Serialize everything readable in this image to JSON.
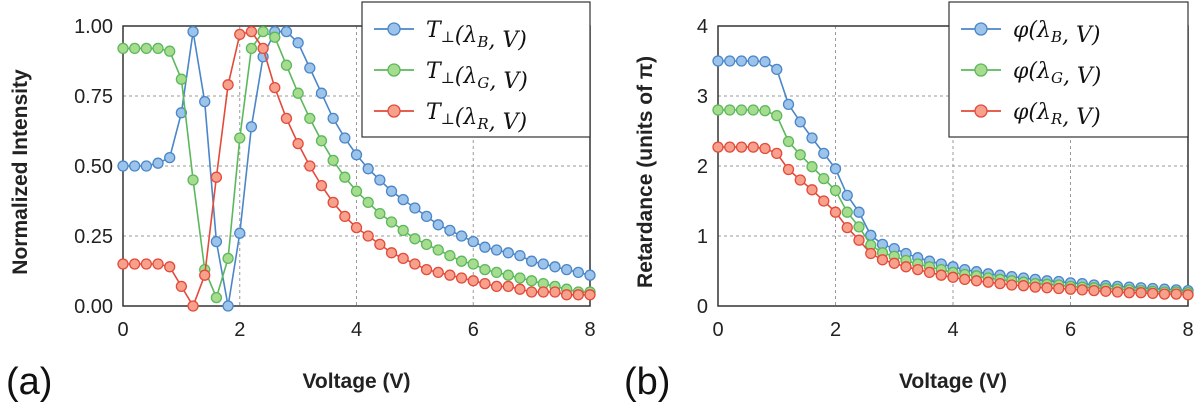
{
  "colors": {
    "blue": "#4a86c8",
    "green": "#5cb85c",
    "red": "#e34a3a",
    "blue_fill": "#9cc3ea",
    "green_fill": "#a6dc8e",
    "red_fill": "#f7a08c"
  },
  "chart_data": [
    {
      "type": "line",
      "panel_label": "(a)",
      "xlabel": "Voltage (V)",
      "ylabel": "Normalized Intensity",
      "xlim": [
        0,
        8
      ],
      "ylim": [
        0,
        1
      ],
      "xticks": [
        "0",
        "2",
        "4",
        "6",
        "8"
      ],
      "yticks": [
        "0.00",
        "0.25",
        "0.50",
        "0.75",
        "1.00"
      ],
      "grid": true,
      "legend_position": "top-right",
      "x": [
        0,
        0.2,
        0.4,
        0.6,
        0.8,
        1.0,
        1.2,
        1.4,
        1.6,
        1.8,
        2.0,
        2.2,
        2.4,
        2.6,
        2.8,
        3.0,
        3.2,
        3.4,
        3.6,
        3.8,
        4.0,
        4.2,
        4.4,
        4.6,
        4.8,
        5.0,
        5.2,
        5.4,
        5.6,
        5.8,
        6.0,
        6.2,
        6.4,
        6.6,
        6.8,
        7.0,
        7.2,
        7.4,
        7.6,
        7.8,
        8.0
      ],
      "series": [
        {
          "name": "T⊥(λB,V)",
          "legend_base": "T",
          "legend_sub": "⊥",
          "legend_lam": "λ",
          "legend_lam_sub": "B",
          "legend_suffix": ", V)",
          "color_key": "blue",
          "values": [
            0.5,
            0.5,
            0.5,
            0.51,
            0.53,
            0.69,
            0.98,
            0.73,
            0.23,
            0.0,
            0.26,
            0.64,
            0.89,
            0.98,
            0.98,
            0.94,
            0.85,
            0.76,
            0.67,
            0.6,
            0.54,
            0.49,
            0.45,
            0.41,
            0.38,
            0.35,
            0.32,
            0.29,
            0.27,
            0.25,
            0.23,
            0.21,
            0.2,
            0.19,
            0.18,
            0.16,
            0.15,
            0.14,
            0.13,
            0.12,
            0.11
          ]
        },
        {
          "name": "T⊥(λG,V)",
          "legend_base": "T",
          "legend_sub": "⊥",
          "legend_lam": "λ",
          "legend_lam_sub": "G",
          "legend_suffix": ", V)",
          "color_key": "green",
          "values": [
            0.92,
            0.92,
            0.92,
            0.92,
            0.91,
            0.81,
            0.45,
            0.13,
            0.03,
            0.17,
            0.6,
            0.92,
            0.98,
            0.96,
            0.86,
            0.76,
            0.67,
            0.59,
            0.52,
            0.46,
            0.41,
            0.37,
            0.33,
            0.3,
            0.27,
            0.24,
            0.22,
            0.2,
            0.18,
            0.16,
            0.15,
            0.13,
            0.12,
            0.11,
            0.1,
            0.09,
            0.08,
            0.07,
            0.06,
            0.05,
            0.05
          ]
        },
        {
          "name": "T⊥(λR,V)",
          "legend_base": "T",
          "legend_sub": "⊥",
          "legend_lam": "λ",
          "legend_lam_sub": "R",
          "legend_suffix": ", V)",
          "color_key": "red",
          "values": [
            0.15,
            0.15,
            0.15,
            0.15,
            0.14,
            0.07,
            0.0,
            0.11,
            0.46,
            0.79,
            0.97,
            0.98,
            0.92,
            0.78,
            0.67,
            0.58,
            0.5,
            0.43,
            0.37,
            0.32,
            0.28,
            0.25,
            0.22,
            0.19,
            0.17,
            0.15,
            0.13,
            0.12,
            0.11,
            0.1,
            0.09,
            0.08,
            0.07,
            0.07,
            0.06,
            0.05,
            0.05,
            0.05,
            0.04,
            0.04,
            0.04
          ]
        }
      ]
    },
    {
      "type": "line",
      "panel_label": "(b)",
      "xlabel": "Voltage (V)",
      "ylabel": "Retardance (units of π)",
      "xlim": [
        0,
        8
      ],
      "ylim": [
        0,
        4
      ],
      "xticks": [
        "0",
        "2",
        "4",
        "6",
        "8"
      ],
      "yticks": [
        "0",
        "1",
        "2",
        "3",
        "4"
      ],
      "grid": true,
      "legend_position": "top-right",
      "x": [
        0,
        0.2,
        0.4,
        0.6,
        0.8,
        1.0,
        1.2,
        1.4,
        1.6,
        1.8,
        2.0,
        2.2,
        2.4,
        2.6,
        2.8,
        3.0,
        3.2,
        3.4,
        3.6,
        3.8,
        4.0,
        4.2,
        4.4,
        4.6,
        4.8,
        5.0,
        5.2,
        5.4,
        5.6,
        5.8,
        6.0,
        6.2,
        6.4,
        6.6,
        6.8,
        7.0,
        7.2,
        7.4,
        7.6,
        7.8,
        8.0
      ],
      "series": [
        {
          "name": "φ(λB,V)",
          "legend_base": "φ",
          "legend_sub": "",
          "legend_lam": "λ",
          "legend_lam_sub": "B",
          "legend_suffix": ", V)",
          "color_key": "blue",
          "values": [
            3.5,
            3.5,
            3.5,
            3.5,
            3.49,
            3.38,
            2.88,
            2.63,
            2.4,
            2.18,
            1.96,
            1.58,
            1.34,
            1.01,
            0.88,
            0.82,
            0.75,
            0.69,
            0.64,
            0.6,
            0.56,
            0.52,
            0.49,
            0.46,
            0.44,
            0.42,
            0.4,
            0.38,
            0.36,
            0.35,
            0.33,
            0.32,
            0.3,
            0.29,
            0.28,
            0.27,
            0.26,
            0.25,
            0.24,
            0.23,
            0.22
          ]
        },
        {
          "name": "φ(λG,V)",
          "legend_base": "φ",
          "legend_sub": "",
          "legend_lam": "λ",
          "legend_lam_sub": "G",
          "legend_suffix": ", V)",
          "color_key": "green",
          "values": [
            2.8,
            2.8,
            2.8,
            2.8,
            2.79,
            2.72,
            2.35,
            2.16,
            1.99,
            1.82,
            1.65,
            1.34,
            1.13,
            0.87,
            0.76,
            0.71,
            0.65,
            0.6,
            0.56,
            0.52,
            0.48,
            0.45,
            0.43,
            0.4,
            0.38,
            0.36,
            0.34,
            0.32,
            0.31,
            0.3,
            0.28,
            0.27,
            0.26,
            0.25,
            0.24,
            0.23,
            0.22,
            0.21,
            0.2,
            0.2,
            0.19
          ]
        },
        {
          "name": "φ(λR,V)",
          "legend_base": "φ",
          "legend_sub": "",
          "legend_lam": "λ",
          "legend_lam_sub": "R",
          "legend_suffix": ", V)",
          "color_key": "red",
          "values": [
            2.27,
            2.27,
            2.27,
            2.27,
            2.25,
            2.18,
            1.95,
            1.8,
            1.66,
            1.5,
            1.34,
            1.12,
            0.94,
            0.75,
            0.66,
            0.61,
            0.56,
            0.52,
            0.48,
            0.44,
            0.41,
            0.38,
            0.36,
            0.34,
            0.32,
            0.3,
            0.29,
            0.27,
            0.26,
            0.25,
            0.24,
            0.23,
            0.22,
            0.21,
            0.2,
            0.19,
            0.19,
            0.18,
            0.17,
            0.17,
            0.16
          ]
        }
      ]
    }
  ]
}
